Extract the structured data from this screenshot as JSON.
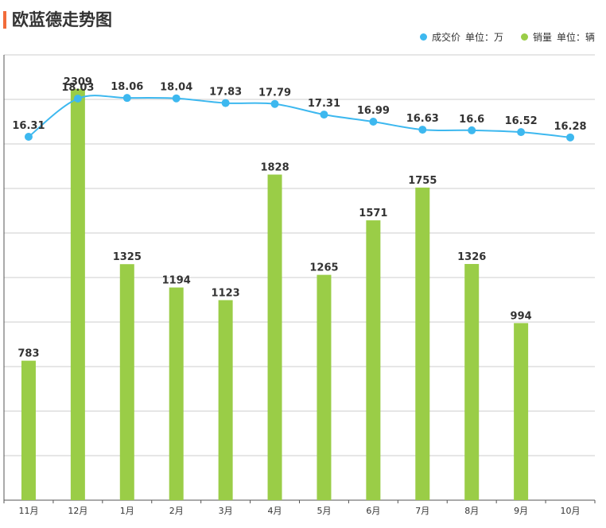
{
  "header": {
    "title": "欧蓝德走势图"
  },
  "legend": {
    "price_label": "成交价",
    "price_unit": "单位：万",
    "sales_label": "销量",
    "sales_unit": "单位：辆"
  },
  "colors": {
    "accent": "#f26b3a",
    "price_line": "#3db8ef",
    "sales_bar": "#9acd47",
    "grid": "#cccccc",
    "text": "#333333"
  },
  "chart_data": {
    "type": "bar+line",
    "title": "欧蓝德走势图",
    "categories": [
      "11月",
      "12月",
      "1月",
      "2月",
      "3月",
      "4月",
      "5月",
      "6月",
      "7月",
      "8月",
      "9月",
      "10月"
    ],
    "series": [
      {
        "name": "成交价",
        "unit": "万",
        "type": "line",
        "values": [
          16.31,
          18.03,
          18.06,
          18.04,
          17.83,
          17.79,
          17.31,
          16.99,
          16.63,
          16.6,
          16.52,
          16.28
        ]
      },
      {
        "name": "销量",
        "unit": "辆",
        "type": "bar",
        "values": [
          783,
          2309,
          1325,
          1194,
          1123,
          1828,
          1265,
          1571,
          1755,
          1326,
          994,
          null
        ]
      }
    ],
    "grid": true,
    "legend_position": "top-right"
  }
}
